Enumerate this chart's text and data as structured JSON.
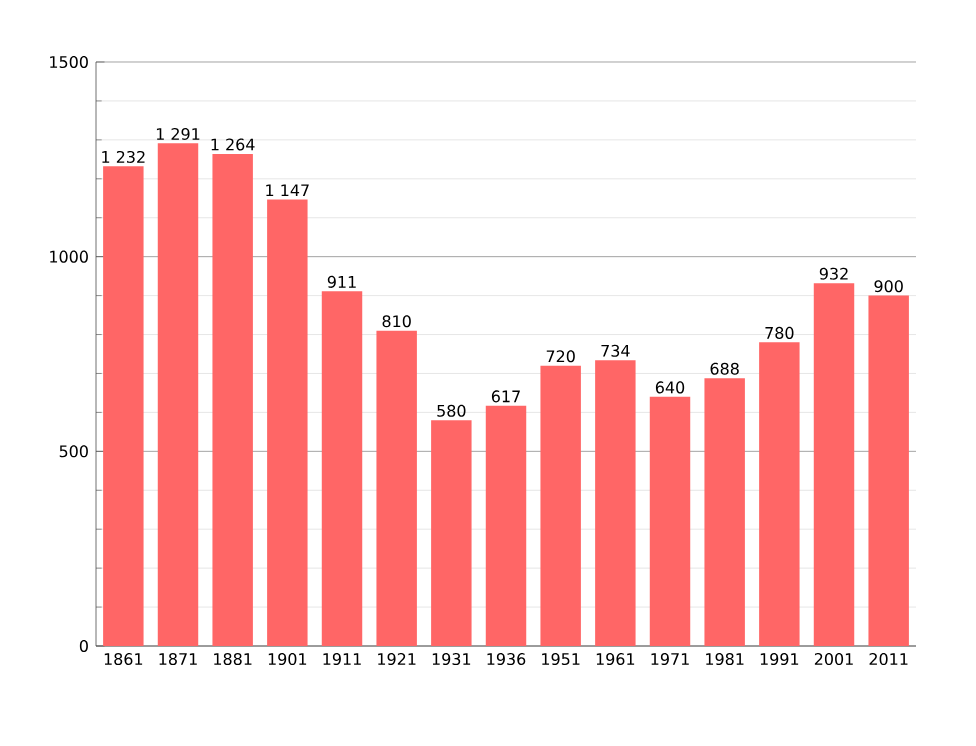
{
  "chart_data": {
    "type": "bar",
    "categories": [
      "1861",
      "1871",
      "1881",
      "1901",
      "1911",
      "1921",
      "1931",
      "1936",
      "1951",
      "1961",
      "1971",
      "1981",
      "1991",
      "2001",
      "2011"
    ],
    "values": [
      1232,
      1291,
      1264,
      1147,
      911,
      810,
      580,
      617,
      720,
      734,
      640,
      688,
      780,
      932,
      900
    ],
    "value_labels": [
      "1 232",
      "1 291",
      "1 264",
      "1 147",
      "911",
      "810",
      "580",
      "617",
      "720",
      "734",
      "640",
      "688",
      "780",
      "932",
      "900"
    ],
    "color": "#ff6666",
    "ylim": [
      0,
      1500
    ],
    "yticks": [
      0,
      500,
      1000,
      1500
    ],
    "grid": "y"
  }
}
